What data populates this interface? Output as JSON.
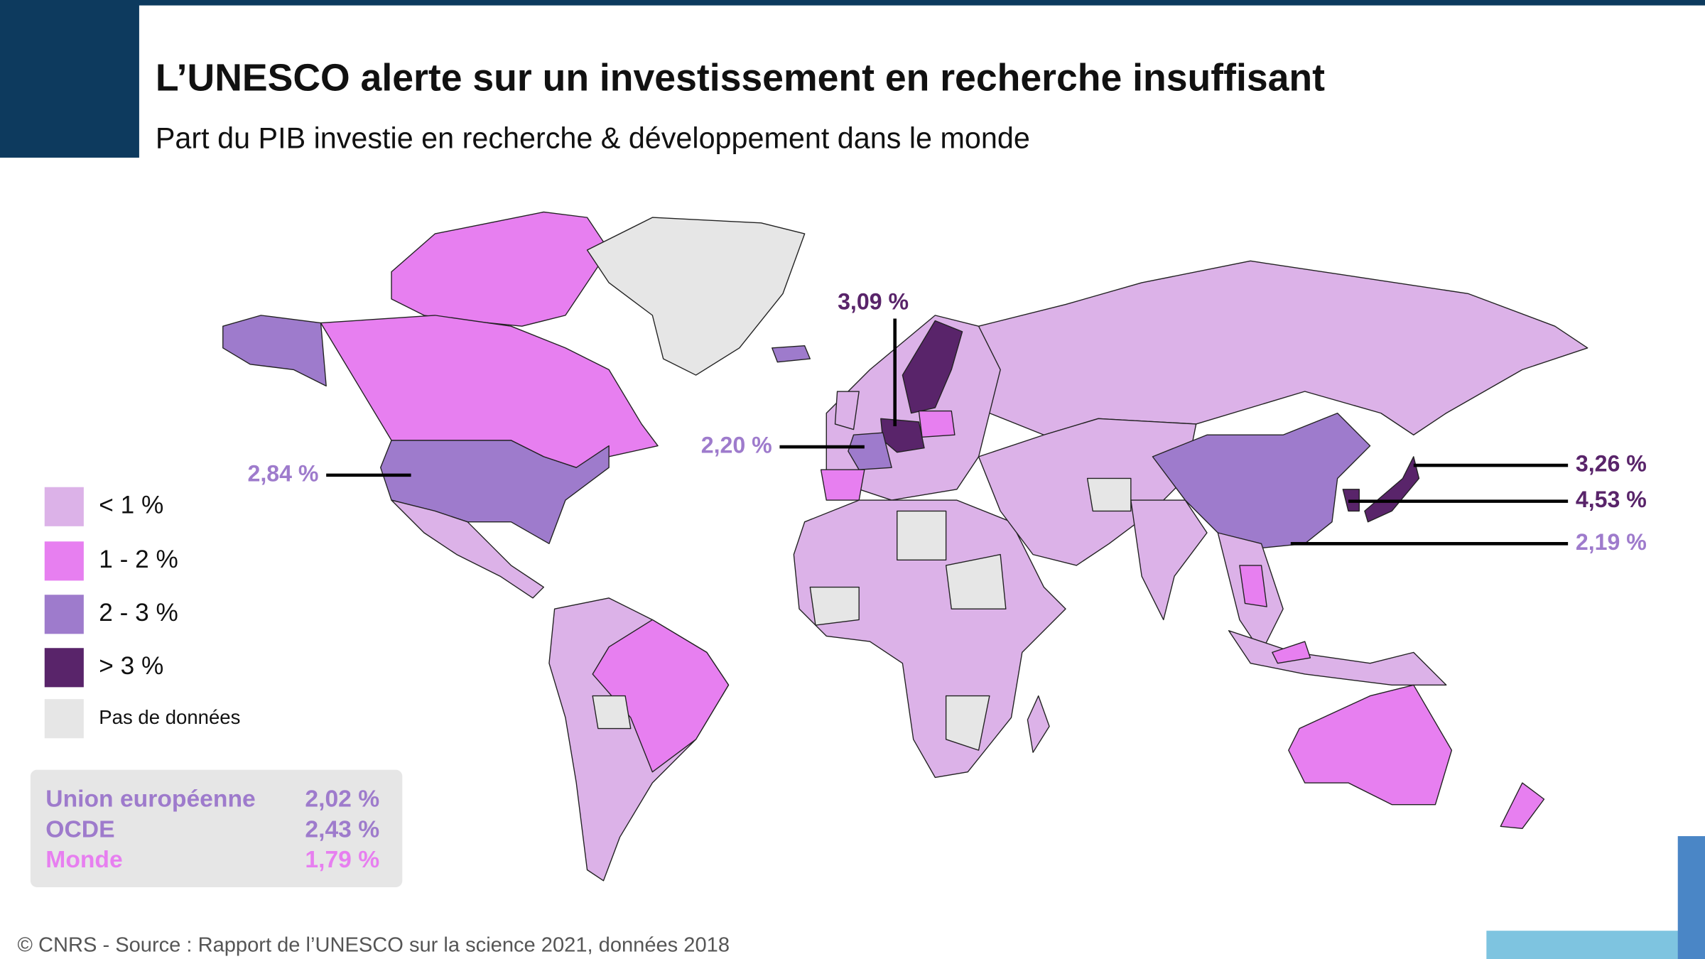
{
  "header": {
    "title": "L’UNESCO alerte sur un investissement en recherche insuffisant",
    "subtitle": "Part du PIB investie en recherche & développement dans le monde"
  },
  "legend": {
    "items": [
      {
        "label": "< 1 %",
        "color": "#dcb2e8"
      },
      {
        "label": "1 - 2 %",
        "color": "#e77ff0"
      },
      {
        "label": "2 - 3 %",
        "color": "#9e7bcc"
      },
      {
        "label": "> 3 %",
        "color": "#59246a"
      },
      {
        "label": "Pas de données",
        "color": "#e6e6e6"
      }
    ]
  },
  "annotations": [
    {
      "label": "3,09 %",
      "color": "#59246a"
    },
    {
      "label": "2,20 %",
      "color": "#9e7bcc"
    },
    {
      "label": "2,84 %",
      "color": "#9e7bcc"
    },
    {
      "label": "3,26 %",
      "color": "#59246a"
    },
    {
      "label": "4,53 %",
      "color": "#59246a"
    },
    {
      "label": "2,19 %",
      "color": "#9e7bcc"
    }
  ],
  "summary": {
    "rows": [
      {
        "name": "Union européenne",
        "value": "2,02 %",
        "color": "#9e7bcc"
      },
      {
        "name": "OCDE",
        "value": "2,43 %",
        "color": "#9e7bcc"
      },
      {
        "name": "Monde",
        "value": "1,79 %",
        "color": "#e77ff0"
      }
    ]
  },
  "footer": "© CNRS - Source : Rapport de l’UNESCO sur la science 2021, données 2018"
}
